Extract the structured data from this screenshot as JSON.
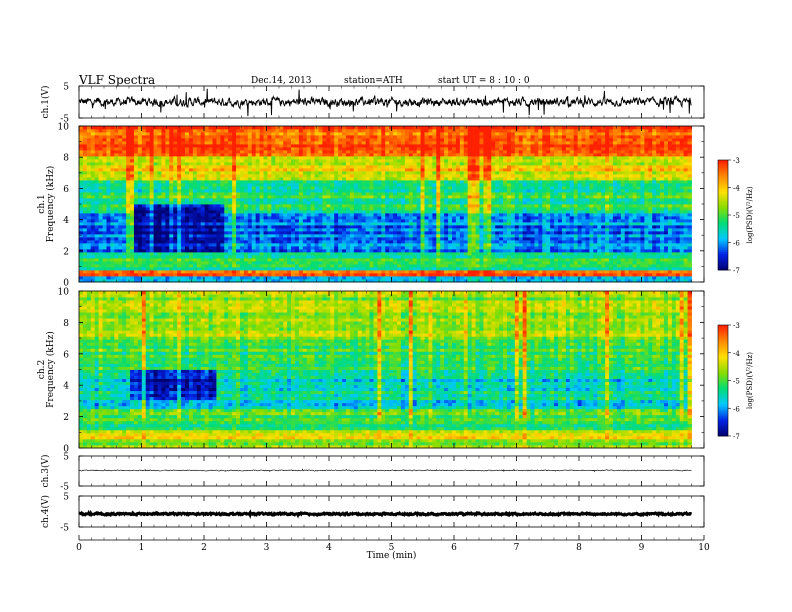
{
  "header": {
    "title": "VLF  Spectra",
    "date": "Dec.14, 2013",
    "station": "station=ATH",
    "start_ut": "start  UT  =   8 : 10 : 0"
  },
  "colors": {
    "colormap": [
      "#00006e",
      "#0022e6",
      "#00c8ff",
      "#00dd77",
      "#88dd00",
      "#ffe000",
      "#ff8800",
      "#ff2000",
      "#ffffff"
    ]
  },
  "chart_data": [
    {
      "type": "line",
      "panel": "ch1-waveform",
      "ylabel": "ch.1(V)",
      "yticks": [
        "5",
        "-5"
      ],
      "ylim": [
        -5,
        5
      ],
      "xlim": [
        0,
        10
      ],
      "x_end": 9.8,
      "baseline": 0,
      "amplitude": 1.2,
      "spike_amplitude": 4.5,
      "line_width_volts": 0.3
    },
    {
      "type": "heatmap",
      "panel": "ch1-spectrogram",
      "ylabel": "ch.1\nFrequency (kHz)",
      "yticks": [
        "0",
        "2",
        "4",
        "6",
        "8",
        "10"
      ],
      "ylim": [
        0,
        10
      ],
      "xlim": [
        0,
        10
      ],
      "x_end": 9.8,
      "colorbar": {
        "label": "log(PSD)(V²/Hz)",
        "ticks": [
          "-3",
          "-4",
          "-5",
          "-6",
          "-7"
        ],
        "range": [
          -7,
          -3
        ]
      },
      "zones": [
        {
          "from_khz": 0,
          "to_khz": 0.4,
          "log_psd": -5.7
        },
        {
          "from_khz": 0.4,
          "to_khz": 0.8,
          "log_psd": -3.4
        },
        {
          "from_khz": 0.8,
          "to_khz": 2,
          "log_psd": -5.2
        },
        {
          "from_khz": 2,
          "to_khz": 4.5,
          "log_psd": -6.1
        },
        {
          "from_khz": 4.5,
          "to_khz": 6.5,
          "log_psd": -5.2
        },
        {
          "from_khz": 6.5,
          "to_khz": 8,
          "log_psd": -4.2
        },
        {
          "from_khz": 8,
          "to_khz": 10,
          "log_psd": -3.3
        }
      ],
      "quiet_band": {
        "from_min": 0.9,
        "to_min": 2.3,
        "from_khz": 2,
        "to_khz": 5,
        "log_psd": -6.8
      }
    },
    {
      "type": "heatmap",
      "panel": "ch2-spectrogram",
      "ylabel": "ch.2\nFrequency (kHz)",
      "yticks": [
        "0",
        "2",
        "4",
        "6",
        "8",
        "10"
      ],
      "ylim": [
        0,
        10
      ],
      "xlim": [
        0,
        10
      ],
      "x_end": 9.8,
      "colorbar": {
        "label": "log(PSD)(V²/Hz)",
        "ticks": [
          "-3",
          "-4",
          "-5",
          "-6",
          "-7"
        ],
        "range": [
          -7,
          -3
        ]
      },
      "zones": [
        {
          "from_khz": 0,
          "to_khz": 0.5,
          "log_psd": -4.6
        },
        {
          "from_khz": 0.5,
          "to_khz": 1.2,
          "log_psd": -4.2
        },
        {
          "from_khz": 1.2,
          "to_khz": 2.5,
          "log_psd": -5.1
        },
        {
          "from_khz": 2.5,
          "to_khz": 5,
          "log_psd": -5.6
        },
        {
          "from_khz": 5,
          "to_khz": 7,
          "log_psd": -5.0
        },
        {
          "from_khz": 7,
          "to_khz": 10,
          "log_psd": -4.6
        }
      ],
      "quiet_band": {
        "from_min": 0.8,
        "to_min": 2.2,
        "from_khz": 3,
        "to_khz": 5,
        "log_psd": -6.7
      }
    },
    {
      "type": "line",
      "panel": "ch3-waveform",
      "ylabel": "ch.3(V)",
      "yticks": [
        "5",
        "-5"
      ],
      "ylim": [
        -5,
        5
      ],
      "xlim": [
        0,
        10
      ],
      "x_end": 9.8,
      "baseline": 0.2,
      "amplitude": 0.15,
      "spike_amplitude": 0.4,
      "line_width_volts": 0.15
    },
    {
      "type": "line",
      "panel": "ch4-waveform",
      "ylabel": "ch.4(V)",
      "yticks": [
        "5",
        "-5"
      ],
      "ylim": [
        -5,
        5
      ],
      "xlim": [
        0,
        10
      ],
      "x_end": 9.8,
      "baseline": -0.8,
      "amplitude": 0.25,
      "spike_amplitude": 0.3,
      "line_width_volts": 0.9
    }
  ],
  "xaxis": {
    "label": "Time (min)",
    "ticks": [
      "0",
      "1",
      "2",
      "3",
      "4",
      "5",
      "6",
      "7",
      "8",
      "9",
      "10"
    ],
    "range": [
      0,
      10
    ]
  }
}
